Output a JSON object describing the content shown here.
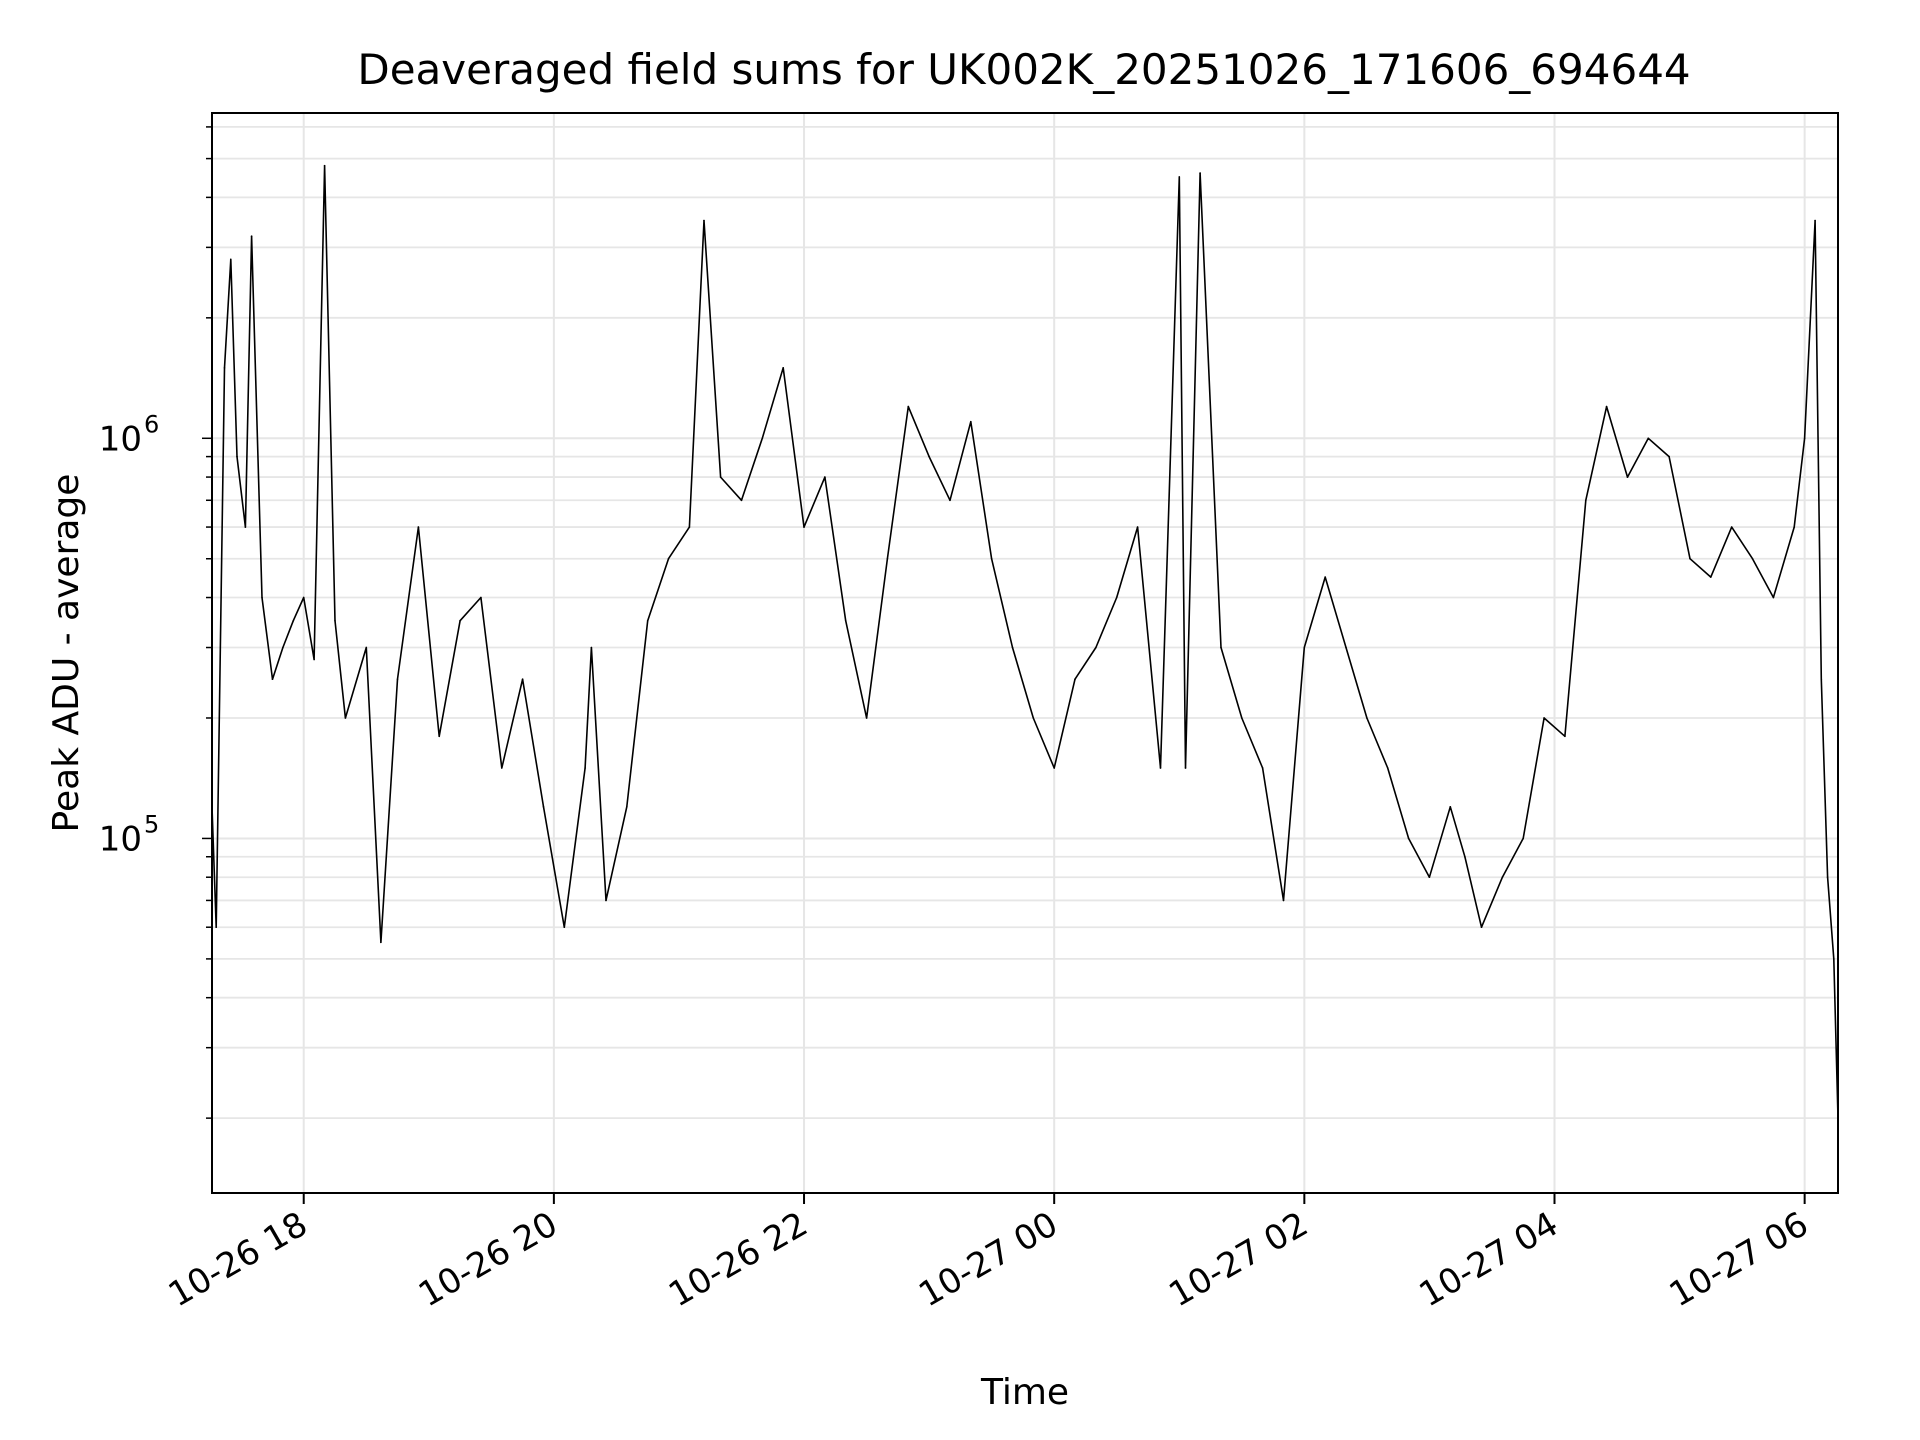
{
  "chart_data": {
    "type": "line",
    "title": "Deaveraged field sums for UK002K_20251026_171606_694644",
    "xlabel": "Time",
    "ylabel": "Peak ADU - average",
    "y_scale": "log",
    "ylim": [
      13000,
      6500000
    ],
    "xlim": [
      "2025-10-26 17:16",
      "2025-10-27 06:16"
    ],
    "grid": true,
    "line_color": "#000000",
    "grid_color": "#e6e6e6",
    "x_ticks": [
      {
        "label": "10-26 18",
        "time": "2025-10-26 18:00"
      },
      {
        "label": "10-26 20",
        "time": "2025-10-26 20:00"
      },
      {
        "label": "10-26 22",
        "time": "2025-10-26 22:00"
      },
      {
        "label": "10-27 00",
        "time": "2025-10-27 00:00"
      },
      {
        "label": "10-27 02",
        "time": "2025-10-27 02:00"
      },
      {
        "label": "10-27 04",
        "time": "2025-10-27 04:00"
      },
      {
        "label": "10-27 06",
        "time": "2025-10-27 06:00"
      }
    ],
    "y_ticks": [
      {
        "base": "10",
        "exp": "5",
        "value": 100000
      },
      {
        "base": "10",
        "exp": "6",
        "value": 1000000
      }
    ],
    "series": [
      {
        "x": [
          "2025-10-26 17:16",
          "2025-10-26 17:18",
          "2025-10-26 17:22",
          "2025-10-26 17:25",
          "2025-10-26 17:28",
          "2025-10-26 17:32",
          "2025-10-26 17:35",
          "2025-10-26 17:40",
          "2025-10-26 17:45",
          "2025-10-26 17:50",
          "2025-10-26 17:55",
          "2025-10-26 18:00",
          "2025-10-26 18:05",
          "2025-10-26 18:10",
          "2025-10-26 18:15",
          "2025-10-26 18:20",
          "2025-10-26 18:30",
          "2025-10-26 18:37",
          "2025-10-26 18:45",
          "2025-10-26 18:55",
          "2025-10-26 19:05",
          "2025-10-26 19:15",
          "2025-10-26 19:25",
          "2025-10-26 19:35",
          "2025-10-26 19:45",
          "2025-10-26 19:55",
          "2025-10-26 20:05",
          "2025-10-26 20:15",
          "2025-10-26 20:18",
          "2025-10-26 20:25",
          "2025-10-26 20:35",
          "2025-10-26 20:45",
          "2025-10-26 20:55",
          "2025-10-26 21:05",
          "2025-10-26 21:12",
          "2025-10-26 21:20",
          "2025-10-26 21:30",
          "2025-10-26 21:40",
          "2025-10-26 21:50",
          "2025-10-26 22:00",
          "2025-10-26 22:10",
          "2025-10-26 22:20",
          "2025-10-26 22:30",
          "2025-10-26 22:40",
          "2025-10-26 22:50",
          "2025-10-26 23:00",
          "2025-10-26 23:10",
          "2025-10-26 23:20",
          "2025-10-26 23:30",
          "2025-10-26 23:40",
          "2025-10-26 23:50",
          "2025-10-27 00:00",
          "2025-10-27 00:10",
          "2025-10-27 00:20",
          "2025-10-27 00:30",
          "2025-10-27 00:40",
          "2025-10-27 00:51",
          "2025-10-27 01:00",
          "2025-10-27 01:03",
          "2025-10-27 01:10",
          "2025-10-27 01:20",
          "2025-10-27 01:30",
          "2025-10-27 01:40",
          "2025-10-27 01:50",
          "2025-10-27 02:00",
          "2025-10-27 02:10",
          "2025-10-27 02:20",
          "2025-10-27 02:30",
          "2025-10-27 02:40",
          "2025-10-27 02:50",
          "2025-10-27 03:00",
          "2025-10-27 03:10",
          "2025-10-27 03:17",
          "2025-10-27 03:25",
          "2025-10-27 03:35",
          "2025-10-27 03:45",
          "2025-10-27 03:55",
          "2025-10-27 04:05",
          "2025-10-27 04:15",
          "2025-10-27 04:25",
          "2025-10-27 04:35",
          "2025-10-27 04:45",
          "2025-10-27 04:55",
          "2025-10-27 05:05",
          "2025-10-27 05:15",
          "2025-10-27 05:25",
          "2025-10-27 05:35",
          "2025-10-27 05:45",
          "2025-10-27 05:55",
          "2025-10-27 06:00",
          "2025-10-27 06:05",
          "2025-10-27 06:08",
          "2025-10-27 06:11",
          "2025-10-27 06:14",
          "2025-10-27 06:16"
        ],
        "y": [
          120000,
          60000,
          1500000,
          2800000,
          900000,
          600000,
          3200000,
          400000,
          250000,
          300000,
          350000,
          400000,
          280000,
          4800000,
          350000,
          200000,
          300000,
          55000,
          250000,
          600000,
          180000,
          350000,
          400000,
          150000,
          250000,
          120000,
          60000,
          150000,
          300000,
          70000,
          120000,
          350000,
          500000,
          600000,
          3500000,
          800000,
          700000,
          1000000,
          1500000,
          600000,
          800000,
          350000,
          200000,
          500000,
          1200000,
          900000,
          700000,
          1100000,
          500000,
          300000,
          200000,
          150000,
          250000,
          300000,
          400000,
          600000,
          150000,
          4500000,
          150000,
          4600000,
          300000,
          200000,
          150000,
          70000,
          300000,
          450000,
          300000,
          200000,
          150000,
          100000,
          80000,
          120000,
          90000,
          60000,
          80000,
          100000,
          200000,
          180000,
          700000,
          1200000,
          800000,
          1000000,
          900000,
          500000,
          450000,
          600000,
          500000,
          400000,
          600000,
          1000000,
          3500000,
          250000,
          80000,
          50000,
          20000
        ]
      }
    ]
  }
}
